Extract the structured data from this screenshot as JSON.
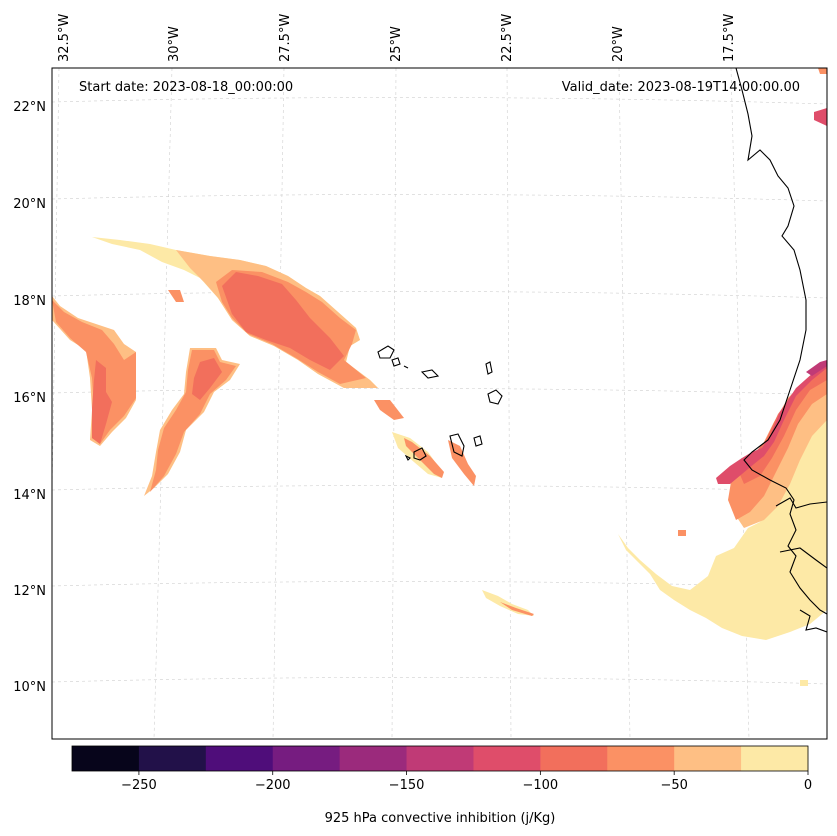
{
  "chart_data": {
    "type": "map-contour",
    "map": {
      "lon_range": [
        -33.0,
        -15.5
      ],
      "lat_range": [
        9.0,
        22.8
      ],
      "lon_ticks": [
        {
          "value": -32.5,
          "label": "32.5°W"
        },
        {
          "value": -30.0,
          "label": "30°W"
        },
        {
          "value": -27.5,
          "label": "27.5°W"
        },
        {
          "value": -25.0,
          "label": "25°W"
        },
        {
          "value": -22.5,
          "label": "22.5°W"
        },
        {
          "value": -20.0,
          "label": "20°W"
        },
        {
          "value": -17.5,
          "label": "17.5°W"
        }
      ],
      "lat_ticks": [
        {
          "value": 22,
          "label": "22°N"
        },
        {
          "value": 20,
          "label": "20°N"
        },
        {
          "value": 18,
          "label": "18°N"
        },
        {
          "value": 16,
          "label": "16°N"
        },
        {
          "value": 14,
          "label": "14°N"
        },
        {
          "value": 12,
          "label": "12°N"
        },
        {
          "value": 10,
          "label": "10°N"
        }
      ],
      "gridlines": true
    },
    "annotations": {
      "start_date": "Start date: 2023-08-18_00:00:00",
      "valid_date": "Valid_date: 2023-08-19T14:00:00.00"
    },
    "colorbar": {
      "label": "925 hPa convective inhibition (j/Kg)",
      "levels": [
        -275,
        -250,
        -225,
        -200,
        -175,
        -150,
        -125,
        -100,
        -75,
        -50,
        -25,
        0
      ],
      "colors": [
        "#07051b",
        "#221149",
        "#4f0d7a",
        "#761c80",
        "#9b2a7c",
        "#c03a76",
        "#df4d6a",
        "#f26f5c",
        "#fb9164",
        "#febf84",
        "#fde9a6"
      ],
      "tick_values": [
        -250,
        -200,
        -150,
        -100,
        -50,
        0
      ],
      "tick_labels": [
        "−250",
        "−200",
        "−150",
        "−100",
        "−50",
        "0"
      ]
    },
    "regions": [
      {
        "name": "western-band",
        "level_range": [
          -100,
          -50
        ],
        "core_level_range": [
          -125,
          -100
        ]
      },
      {
        "name": "central-band",
        "level_range": [
          -75,
          -50
        ],
        "core_level_range": [
          -125,
          -100
        ]
      },
      {
        "name": "northern-band",
        "level_range": [
          -100,
          -25
        ],
        "core_level_range": [
          -125,
          -100
        ]
      },
      {
        "name": "cabo-verde-streaks",
        "level_range": [
          -75,
          0
        ]
      },
      {
        "name": "african-coast",
        "level_range": [
          -125,
          0
        ]
      },
      {
        "name": "southern-plume",
        "level_range": [
          -25,
          0
        ]
      }
    ]
  }
}
